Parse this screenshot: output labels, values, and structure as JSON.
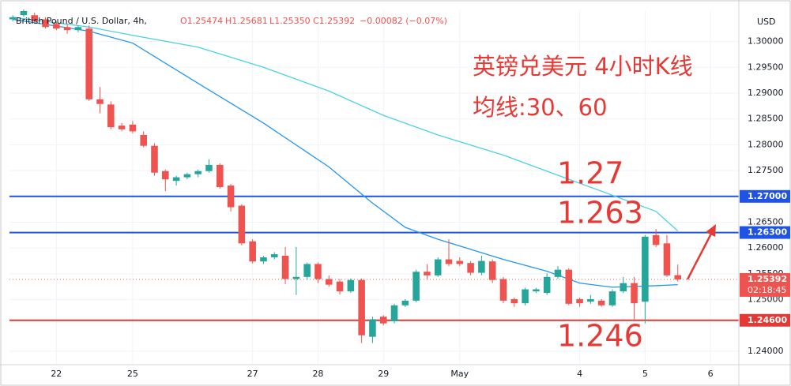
{
  "chart_data": {
    "type": "candlestick",
    "header": {
      "symbol": "British Pound / U.S. Dollar, 4h,",
      "open": "O1.25474",
      "high": "H1.25681",
      "low": "L1.25350",
      "close": "C1.25392",
      "change": "−0.00082 (−0.07%)"
    },
    "currency": "USD",
    "annotations": [
      "英镑兑美元 4小时K线",
      "均线:30、60",
      "1.27",
      "1.263",
      "1.246"
    ],
    "x": [
      0,
      1,
      2,
      3,
      4,
      5,
      6,
      7,
      8,
      9,
      10,
      11,
      12,
      13,
      14,
      15,
      16,
      17,
      18,
      19,
      20,
      21,
      22,
      23,
      24,
      25,
      26,
      27,
      28,
      29,
      30,
      31,
      32,
      33,
      34,
      35,
      36,
      37,
      38,
      39,
      40,
      41,
      42,
      43,
      44,
      45,
      46,
      47,
      48,
      49,
      50,
      51,
      52,
      53,
      54,
      55,
      56,
      57,
      58,
      59,
      60,
      61
    ],
    "open": [
      1.3043,
      1.3051,
      1.3051,
      1.3043,
      1.3034,
      1.3028,
      1.3022,
      1.3025,
      1.2888,
      1.2878,
      1.2837,
      1.2839,
      1.2819,
      1.2798,
      1.2749,
      1.273,
      1.2737,
      1.2743,
      1.2749,
      1.2761,
      1.2721,
      1.2682,
      1.2613,
      1.2574,
      1.2582,
      1.2585,
      1.254,
      1.2544,
      1.2569,
      1.254,
      1.2535,
      1.2516,
      1.2538,
      1.2428,
      1.2467,
      1.2458,
      1.2489,
      1.2498,
      1.2554,
      1.2547,
      1.2578,
      1.2575,
      1.2571,
      1.2552,
      1.2574,
      1.254,
      1.2501,
      1.2493,
      1.2516,
      1.2513,
      1.2544,
      1.2558,
      1.2501,
      1.2496,
      1.2498,
      1.2489,
      1.2516,
      1.2532,
      1.2496,
      1.2625,
      1.2609,
      1.25474
    ],
    "high": [
      1.3051,
      1.3062,
      1.3056,
      1.3047,
      1.304,
      1.3034,
      1.3031,
      1.3031,
      1.2912,
      1.2884,
      1.2842,
      1.2846,
      1.2826,
      1.2803,
      1.2752,
      1.274,
      1.2746,
      1.2752,
      1.2772,
      1.2764,
      1.2724,
      1.2685,
      1.2617,
      1.2585,
      1.2592,
      1.2602,
      1.2602,
      1.2572,
      1.2572,
      1.2547,
      1.254,
      1.2541,
      1.2541,
      1.2467,
      1.247,
      1.2492,
      1.2501,
      1.2558,
      1.2569,
      1.2582,
      1.2617,
      1.2582,
      1.2575,
      1.2585,
      1.2578,
      1.2544,
      1.2504,
      1.2523,
      1.2523,
      1.2551,
      1.2565,
      1.2561,
      1.2504,
      1.2509,
      1.2501,
      1.252,
      1.2544,
      1.2544,
      1.2625,
      1.2637,
      1.2625,
      1.25681
    ],
    "low": [
      1.3039,
      1.3048,
      1.3036,
      1.3025,
      1.3022,
      1.3015,
      1.3018,
      1.2885,
      1.2861,
      1.283,
      1.2826,
      1.2822,
      1.2795,
      1.274,
      1.271,
      1.2721,
      1.2733,
      1.2737,
      1.2746,
      1.2715,
      1.2671,
      1.2605,
      1.257,
      1.2569,
      1.2578,
      1.253,
      1.2509,
      1.2538,
      1.2532,
      1.2525,
      1.251,
      1.2513,
      1.2416,
      1.2416,
      1.245,
      1.2454,
      1.2486,
      1.2495,
      1.254,
      1.2544,
      1.2565,
      1.2565,
      1.2547,
      1.2547,
      1.2532,
      1.2493,
      1.2486,
      1.2489,
      1.2513,
      1.2509,
      1.254,
      1.2489,
      1.2486,
      1.2492,
      1.2486,
      1.2486,
      1.2513,
      1.2462,
      1.2454,
      1.2602,
      1.2544,
      1.2535
    ],
    "close": [
      1.3047,
      1.3059,
      1.3039,
      1.3028,
      1.3025,
      1.3022,
      1.3028,
      1.2888,
      1.2879,
      1.2834,
      1.283,
      1.2826,
      1.2798,
      1.2746,
      1.2733,
      1.2737,
      1.2743,
      1.2749,
      1.2761,
      1.2718,
      1.2679,
      1.2609,
      1.2574,
      1.2582,
      1.2588,
      1.254,
      1.2544,
      1.2569,
      1.254,
      1.2529,
      1.2516,
      1.2538,
      1.2431,
      1.2462,
      1.2454,
      1.2489,
      1.2498,
      1.2554,
      1.2547,
      1.2578,
      1.2569,
      1.2569,
      1.2552,
      1.2575,
      1.2538,
      1.2498,
      1.2493,
      1.252,
      1.252,
      1.2544,
      1.2558,
      1.2492,
      1.2493,
      1.2501,
      1.2489,
      1.2516,
      1.2532,
      1.2493,
      1.2622,
      1.2606,
      1.2547,
      1.25392
    ],
    "up_color": "#26a69a",
    "down_color": "#ef5350",
    "series": [
      {
        "name": "MA30",
        "color": "#2196f3",
        "x": [
          0,
          7,
          11,
          17,
          23,
          29,
          33,
          36,
          39,
          45,
          49,
          52,
          55,
          59,
          61
        ],
        "values": [
          1.3043,
          1.302,
          1.2997,
          1.2919,
          1.2842,
          1.2757,
          1.2687,
          1.264,
          1.2617,
          1.2578,
          1.2555,
          1.2532,
          1.2524,
          1.2527,
          1.2529
        ]
      },
      {
        "name": "MA60",
        "color": "#4dd0e1",
        "x": [
          0,
          7,
          11,
          17,
          23,
          29,
          34,
          39,
          45,
          50,
          54,
          59,
          61
        ],
        "values": [
          1.3047,
          1.3028,
          1.3012,
          1.2989,
          1.295,
          1.2904,
          1.2857,
          1.2819,
          1.278,
          1.2741,
          1.271,
          1.2671,
          1.2633
        ]
      }
    ],
    "hlines": [
      {
        "value": 1.27,
        "label": "1.27000",
        "color": "#1e53e5"
      },
      {
        "value": 1.263,
        "label": "1.26300",
        "color": "#1e53e5"
      },
      {
        "value": 1.246,
        "label": "1.24600",
        "color": "#e53935"
      }
    ],
    "last_price": {
      "value": 1.25392,
      "label": "1.25392",
      "countdown": "02:18:45",
      "color": "#ef5350"
    },
    "xlim": [
      -0.3,
      66.6
    ],
    "xticks": [
      {
        "value": 4,
        "label": "22"
      },
      {
        "value": 11,
        "label": "25"
      },
      {
        "value": 22,
        "label": "27"
      },
      {
        "value": 28,
        "label": "28"
      },
      {
        "value": 34,
        "label": "29"
      },
      {
        "value": 41,
        "label": "May"
      },
      {
        "value": 52,
        "label": "4"
      },
      {
        "value": 58,
        "label": "5"
      },
      {
        "value": 64,
        "label": "6"
      }
    ],
    "ylim": [
      1.2374,
      1.3059
    ],
    "yticks": [
      {
        "value": 1.24,
        "label": "1.24000"
      },
      {
        "value": 1.25,
        "label": "1.25000"
      },
      {
        "value": 1.255,
        "label": "1.25500"
      },
      {
        "value": 1.26,
        "label": "1.26000"
      },
      {
        "value": 1.265,
        "label": "1.26500"
      },
      {
        "value": 1.275,
        "label": "1.27500"
      },
      {
        "value": 1.28,
        "label": "1.28000"
      },
      {
        "value": 1.285,
        "label": "1.28500"
      },
      {
        "value": 1.29,
        "label": "1.29000"
      },
      {
        "value": 1.295,
        "label": "1.29500"
      },
      {
        "value": 1.3,
        "label": "1.30000"
      }
    ],
    "grid": true
  }
}
